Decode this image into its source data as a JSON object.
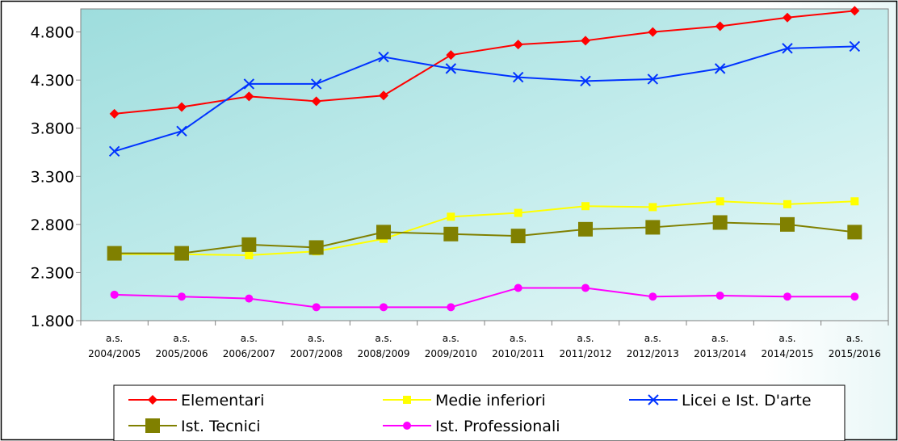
{
  "chart_data": {
    "type": "line",
    "categories": [
      [
        "a.s.",
        "2004/2005"
      ],
      [
        "a.s.",
        "2005/2006"
      ],
      [
        "a.s.",
        "2006/2007"
      ],
      [
        "a.s.",
        "2007/2008"
      ],
      [
        "a.s.",
        "2008/2009"
      ],
      [
        "a.s.",
        "2009/2010"
      ],
      [
        "a.s.",
        "2010/2011"
      ],
      [
        "a.s.",
        "2011/2012"
      ],
      [
        "a.s.",
        "2012/2013"
      ],
      [
        "a.s.",
        "2013/2014"
      ],
      [
        "a.s.",
        "2014/2015"
      ],
      [
        "a.s.",
        "2015/2016"
      ]
    ],
    "ylim": [
      1800,
      5040
    ],
    "yticks": [
      1800,
      2300,
      2800,
      3300,
      3800,
      4300,
      4800
    ],
    "ytick_labels": [
      "1.800",
      "2.300",
      "2.800",
      "3.300",
      "3.800",
      "4.300",
      "4.800"
    ],
    "grid": false,
    "legend_position": "bottom",
    "series": [
      {
        "name": "Elementari",
        "color": "#ff0000",
        "marker": "diamond",
        "values": [
          3950,
          4020,
          4130,
          4080,
          4140,
          4560,
          4670,
          4710,
          4800,
          4860,
          4950,
          5020
        ]
      },
      {
        "name": "Medie inferiori",
        "color": "#ffff00",
        "marker": "square",
        "values": [
          2490,
          2490,
          2480,
          2520,
          2650,
          2880,
          2920,
          2990,
          2980,
          3040,
          3010,
          3040
        ]
      },
      {
        "name": "Licei e Ist. D'arte",
        "color": "#0033ff",
        "marker": "x",
        "values": [
          3560,
          3770,
          4260,
          4260,
          4540,
          4420,
          4330,
          4290,
          4310,
          4420,
          4630,
          4650
        ]
      },
      {
        "name": "Ist. Tecnici",
        "color": "#808000",
        "marker": "bigsquare",
        "values": [
          2500,
          2500,
          2590,
          2560,
          2720,
          2700,
          2680,
          2750,
          2770,
          2820,
          2800,
          2720
        ]
      },
      {
        "name": "Ist. Professionali",
        "color": "#ff00ff",
        "marker": "circle",
        "values": [
          2070,
          2050,
          2030,
          1940,
          1940,
          1940,
          2140,
          2140,
          2050,
          2060,
          2050,
          2050
        ]
      }
    ]
  }
}
